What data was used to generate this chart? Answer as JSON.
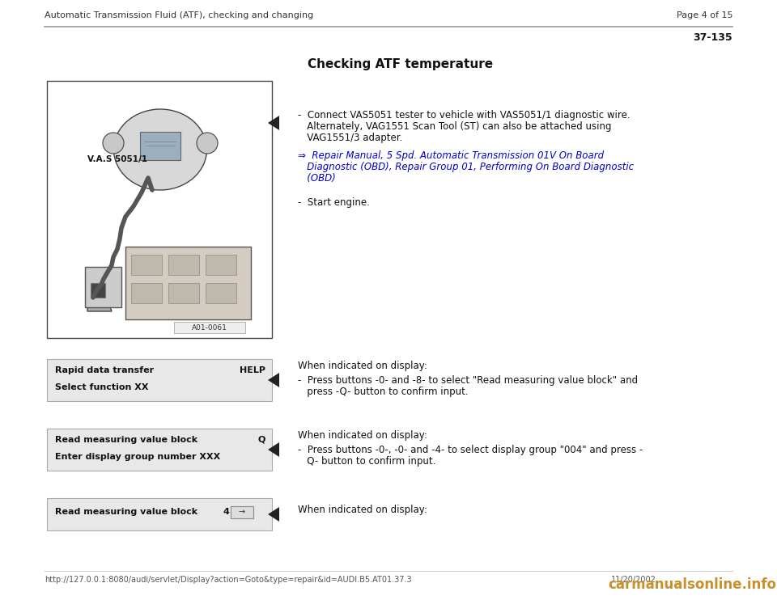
{
  "page_bg": "#ffffff",
  "header_left": "Automatic Transmission Fluid (ATF), checking and changing",
  "header_right": "Page 4 of 15",
  "section_number": "37-135",
  "section_title": "Checking ATF temperature",
  "bullet1_line1": "-  Connect VAS5051 tester to vehicle with VAS5051/1 diagnostic wire.",
  "bullet1_line2": "   Alternately, VAG1551 Scan Tool (ST) can also be attached using",
  "bullet1_line3": "   VAG1551/3 adapter.",
  "link_line1": "⇒  Repair Manual, 5 Spd. Automatic Transmission 01V On Board",
  "link_line2": "   Diagnostic (OBD), Repair Group 01, Performing On Board Diagnostic",
  "link_line3": "   (OBD)",
  "bullet2": "-  Start engine.",
  "disp1_l1": "Rapid data transfer",
  "disp1_r1": "HELP",
  "disp1_l2": "Select function XX",
  "disp1_when": "When indicated on display:",
  "disp1_b1": "-  Press buttons -0- and -8- to select \"Read measuring value block\" and",
  "disp1_b2": "   press -Q- button to confirm input.",
  "disp2_l1": "Read measuring value block",
  "disp2_r1": "Q",
  "disp2_l2": "Enter display group number XXX",
  "disp2_when": "When indicated on display:",
  "disp2_b1": "-  Press buttons -0-, -0- and -4- to select display group \"004\" and press -",
  "disp2_b2": "   Q- button to confirm input.",
  "disp3_l1": "Read measuring value block",
  "disp3_mid": "4",
  "disp3_when": "When indicated on display:",
  "footer_url": "http://127.0.0.1:8080/audi/servlet/Display?action=Goto&type=repair&id=AUDI.B5.AT01.37.3",
  "footer_date": "11/20/2002",
  "watermark": "carmanualsonline.info",
  "disp_box_color": "#e8e8e8",
  "disp_box_edge": "#aaaaaa",
  "link_color": "#0000cc",
  "text_color": "#111111",
  "header_color": "#333333"
}
